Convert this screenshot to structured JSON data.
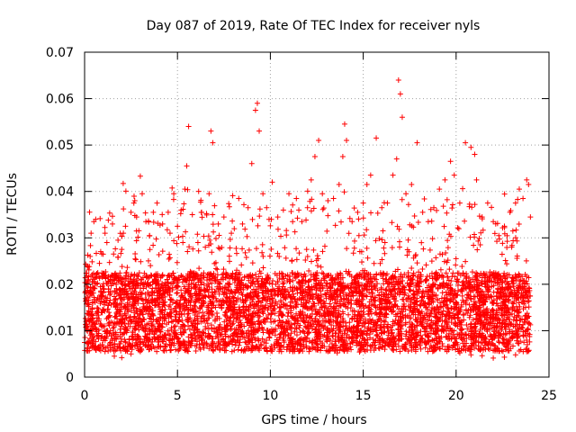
{
  "chart_data": {
    "type": "scatter",
    "title": "Day 087 of 2019, Rate Of TEC Index for receiver nyls",
    "xlabel": "GPS time / hours",
    "ylabel": "ROTI / TECUs",
    "xlim": [
      0,
      25
    ],
    "ylim": [
      0,
      0.07
    ],
    "xticks": [
      0,
      5,
      10,
      15,
      20,
      25
    ],
    "yticks": [
      0,
      0.01,
      0.02,
      0.03,
      0.04,
      0.05,
      0.06,
      0.07
    ],
    "xtick_labels": [
      "0",
      "5",
      "10",
      "15",
      "20",
      "25"
    ],
    "ytick_labels": [
      "0",
      "0.01",
      "0.02",
      "0.03",
      "0.04",
      "0.05",
      "0.06",
      "0.07"
    ],
    "grid": true,
    "marker": "+",
    "series_color": "#ff0000",
    "axis_color": "#000000",
    "grid_color": "#a0a0a0",
    "data_range_x": [
      0,
      24
    ],
    "series": [
      {
        "name": "ROTI",
        "points": [
          [
            0.1,
            0.0165
          ],
          [
            0.2,
            0.021
          ],
          [
            0.3,
            0.026
          ],
          [
            0.35,
            0.031
          ],
          [
            0.5,
            0.0335
          ],
          [
            0.6,
            0.034
          ],
          [
            0.8,
            0.0245
          ],
          [
            1.0,
            0.0265
          ],
          [
            1.1,
            0.031
          ],
          [
            1.2,
            0.029
          ],
          [
            1.5,
            0.033
          ],
          [
            1.8,
            0.0295
          ],
          [
            2.0,
            0.0275
          ],
          [
            2.2,
            0.0325
          ],
          [
            2.5,
            0.0355
          ],
          [
            2.7,
            0.038
          ],
          [
            2.8,
            0.0345
          ],
          [
            3.0,
            0.0433
          ],
          [
            3.1,
            0.0395
          ],
          [
            3.3,
            0.0335
          ],
          [
            3.5,
            0.0305
          ],
          [
            3.7,
            0.0355
          ],
          [
            3.9,
            0.0375
          ],
          [
            4.2,
            0.033
          ],
          [
            4.5,
            0.0355
          ],
          [
            4.6,
            0.031
          ],
          [
            4.8,
            0.0395
          ],
          [
            5.0,
            0.0325
          ],
          [
            5.2,
            0.036
          ],
          [
            5.4,
            0.0405
          ],
          [
            5.5,
            0.0455
          ],
          [
            5.6,
            0.054
          ],
          [
            5.8,
            0.035
          ],
          [
            6.1,
            0.029
          ],
          [
            6.3,
            0.0355
          ],
          [
            6.5,
            0.028
          ],
          [
            6.7,
            0.0395
          ],
          [
            6.8,
            0.053
          ],
          [
            6.9,
            0.0505
          ],
          [
            7.2,
            0.033
          ],
          [
            7.5,
            0.0345
          ],
          [
            7.9,
            0.031
          ],
          [
            8.3,
            0.0385
          ],
          [
            8.5,
            0.033
          ],
          [
            8.8,
            0.0365
          ],
          [
            9.0,
            0.046
          ],
          [
            9.2,
            0.0575
          ],
          [
            9.3,
            0.059
          ],
          [
            9.4,
            0.053
          ],
          [
            9.6,
            0.0395
          ],
          [
            9.8,
            0.0365
          ],
          [
            10.1,
            0.042
          ],
          [
            10.4,
            0.0345
          ],
          [
            10.7,
            0.036
          ],
          [
            11.0,
            0.0395
          ],
          [
            11.2,
            0.0335
          ],
          [
            11.4,
            0.0385
          ],
          [
            11.7,
            0.0335
          ],
          [
            12.0,
            0.0365
          ],
          [
            12.2,
            0.0425
          ],
          [
            12.4,
            0.0475
          ],
          [
            12.6,
            0.051
          ],
          [
            12.8,
            0.0395
          ],
          [
            13.1,
            0.038
          ],
          [
            13.4,
            0.0385
          ],
          [
            13.7,
            0.0415
          ],
          [
            13.9,
            0.0475
          ],
          [
            14.0,
            0.0545
          ],
          [
            14.1,
            0.051
          ],
          [
            14.4,
            0.0335
          ],
          [
            14.7,
            0.0355
          ],
          [
            15.0,
            0.0375
          ],
          [
            15.2,
            0.0415
          ],
          [
            15.4,
            0.0435
          ],
          [
            15.7,
            0.0515
          ],
          [
            16.0,
            0.0365
          ],
          [
            16.3,
            0.0375
          ],
          [
            16.6,
            0.0435
          ],
          [
            16.8,
            0.047
          ],
          [
            16.9,
            0.064
          ],
          [
            17.0,
            0.061
          ],
          [
            17.1,
            0.056
          ],
          [
            17.3,
            0.0395
          ],
          [
            17.6,
            0.0415
          ],
          [
            17.9,
            0.0505
          ],
          [
            18.2,
            0.0355
          ],
          [
            18.5,
            0.0335
          ],
          [
            18.8,
            0.0365
          ],
          [
            19.1,
            0.0405
          ],
          [
            19.4,
            0.0425
          ],
          [
            19.7,
            0.0465
          ],
          [
            19.9,
            0.0435
          ],
          [
            20.2,
            0.0375
          ],
          [
            20.5,
            0.0505
          ],
          [
            20.8,
            0.0495
          ],
          [
            21.0,
            0.048
          ],
          [
            21.1,
            0.0425
          ],
          [
            21.4,
            0.0345
          ],
          [
            21.7,
            0.0375
          ],
          [
            22.0,
            0.0335
          ],
          [
            22.3,
            0.0305
          ],
          [
            22.6,
            0.0325
          ],
          [
            22.9,
            0.0355
          ],
          [
            23.2,
            0.0375
          ],
          [
            23.4,
            0.0405
          ],
          [
            23.6,
            0.0385
          ],
          [
            23.8,
            0.0425
          ],
          [
            23.9,
            0.0415
          ],
          [
            24.0,
            0.0345
          ],
          [
            0.2,
            0.0075
          ],
          [
            0.6,
            0.0065
          ],
          [
            1.1,
            0.0055
          ],
          [
            1.6,
            0.0045
          ],
          [
            2.0,
            0.0042
          ],
          [
            2.5,
            0.005
          ],
          [
            3.0,
            0.0055
          ],
          [
            3.5,
            0.006
          ],
          [
            4.0,
            0.0065
          ],
          [
            4.6,
            0.007
          ],
          [
            5.1,
            0.0075
          ],
          [
            5.7,
            0.0068
          ],
          [
            6.3,
            0.0072
          ],
          [
            6.9,
            0.0064
          ],
          [
            7.6,
            0.0067
          ],
          [
            8.2,
            0.0076
          ],
          [
            8.8,
            0.0071
          ],
          [
            9.4,
            0.0058
          ],
          [
            10.0,
            0.0062
          ],
          [
            10.6,
            0.0055
          ],
          [
            11.2,
            0.0059
          ],
          [
            11.8,
            0.0066
          ],
          [
            12.4,
            0.0063
          ],
          [
            13.0,
            0.0057
          ],
          [
            13.6,
            0.0052
          ],
          [
            14.2,
            0.0061
          ],
          [
            14.8,
            0.0054
          ],
          [
            15.4,
            0.0058
          ],
          [
            16.0,
            0.0064
          ],
          [
            16.6,
            0.0068
          ],
          [
            17.2,
            0.0062
          ],
          [
            17.8,
            0.0067
          ],
          [
            18.4,
            0.0071
          ],
          [
            19.0,
            0.0065
          ],
          [
            19.6,
            0.0059
          ],
          [
            20.2,
            0.0052
          ],
          [
            20.8,
            0.0048
          ],
          [
            21.4,
            0.0046
          ],
          [
            22.0,
            0.0041
          ],
          [
            22.6,
            0.0043
          ],
          [
            23.2,
            0.0048
          ],
          [
            23.8,
            0.0055
          ]
        ]
      }
    ]
  }
}
